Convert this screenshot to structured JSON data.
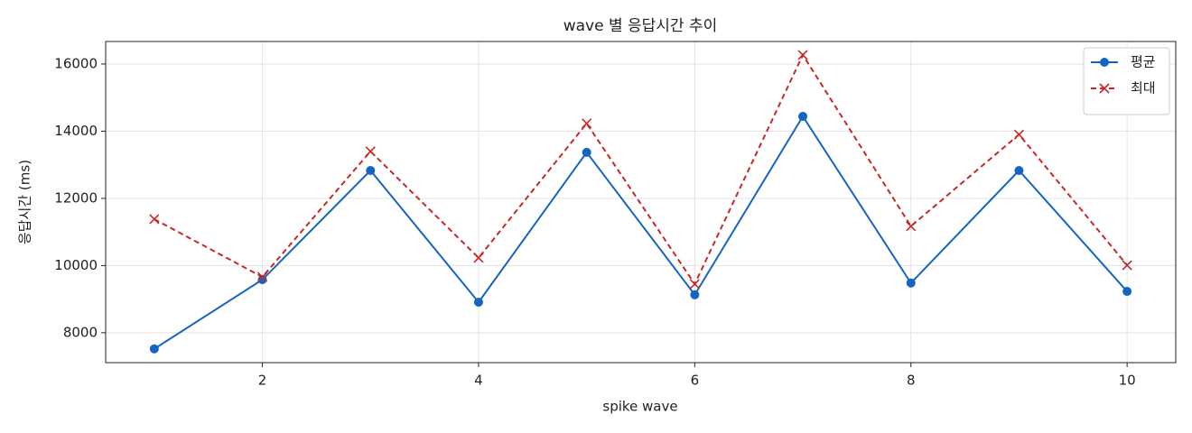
{
  "chart_data": {
    "type": "line",
    "title": "wave 별 응답시간 추이",
    "xlabel": "spike wave",
    "ylabel": "응답시간 (ms)",
    "x": [
      1,
      2,
      3,
      4,
      5,
      6,
      7,
      8,
      9,
      10
    ],
    "series": [
      {
        "name": "평균",
        "color": "#1565c0",
        "marker": "o",
        "linestyle": "solid",
        "values": [
          7520,
          9580,
          12830,
          8910,
          13370,
          9130,
          14440,
          9480,
          12830,
          9230
        ]
      },
      {
        "name": "최대",
        "color": "#c62828",
        "marker": "x",
        "linestyle": "dashed",
        "values": [
          11380,
          9660,
          13400,
          10230,
          14230,
          9450,
          16270,
          11170,
          13900,
          10010
        ]
      }
    ],
    "xlim": [
      0.55,
      10.45
    ],
    "ylim": [
      7110,
      16670
    ],
    "xticks": [
      2,
      4,
      6,
      8,
      10
    ],
    "yticks": [
      8000,
      10000,
      12000,
      14000,
      16000
    ],
    "grid": true,
    "legend": "upper right"
  }
}
